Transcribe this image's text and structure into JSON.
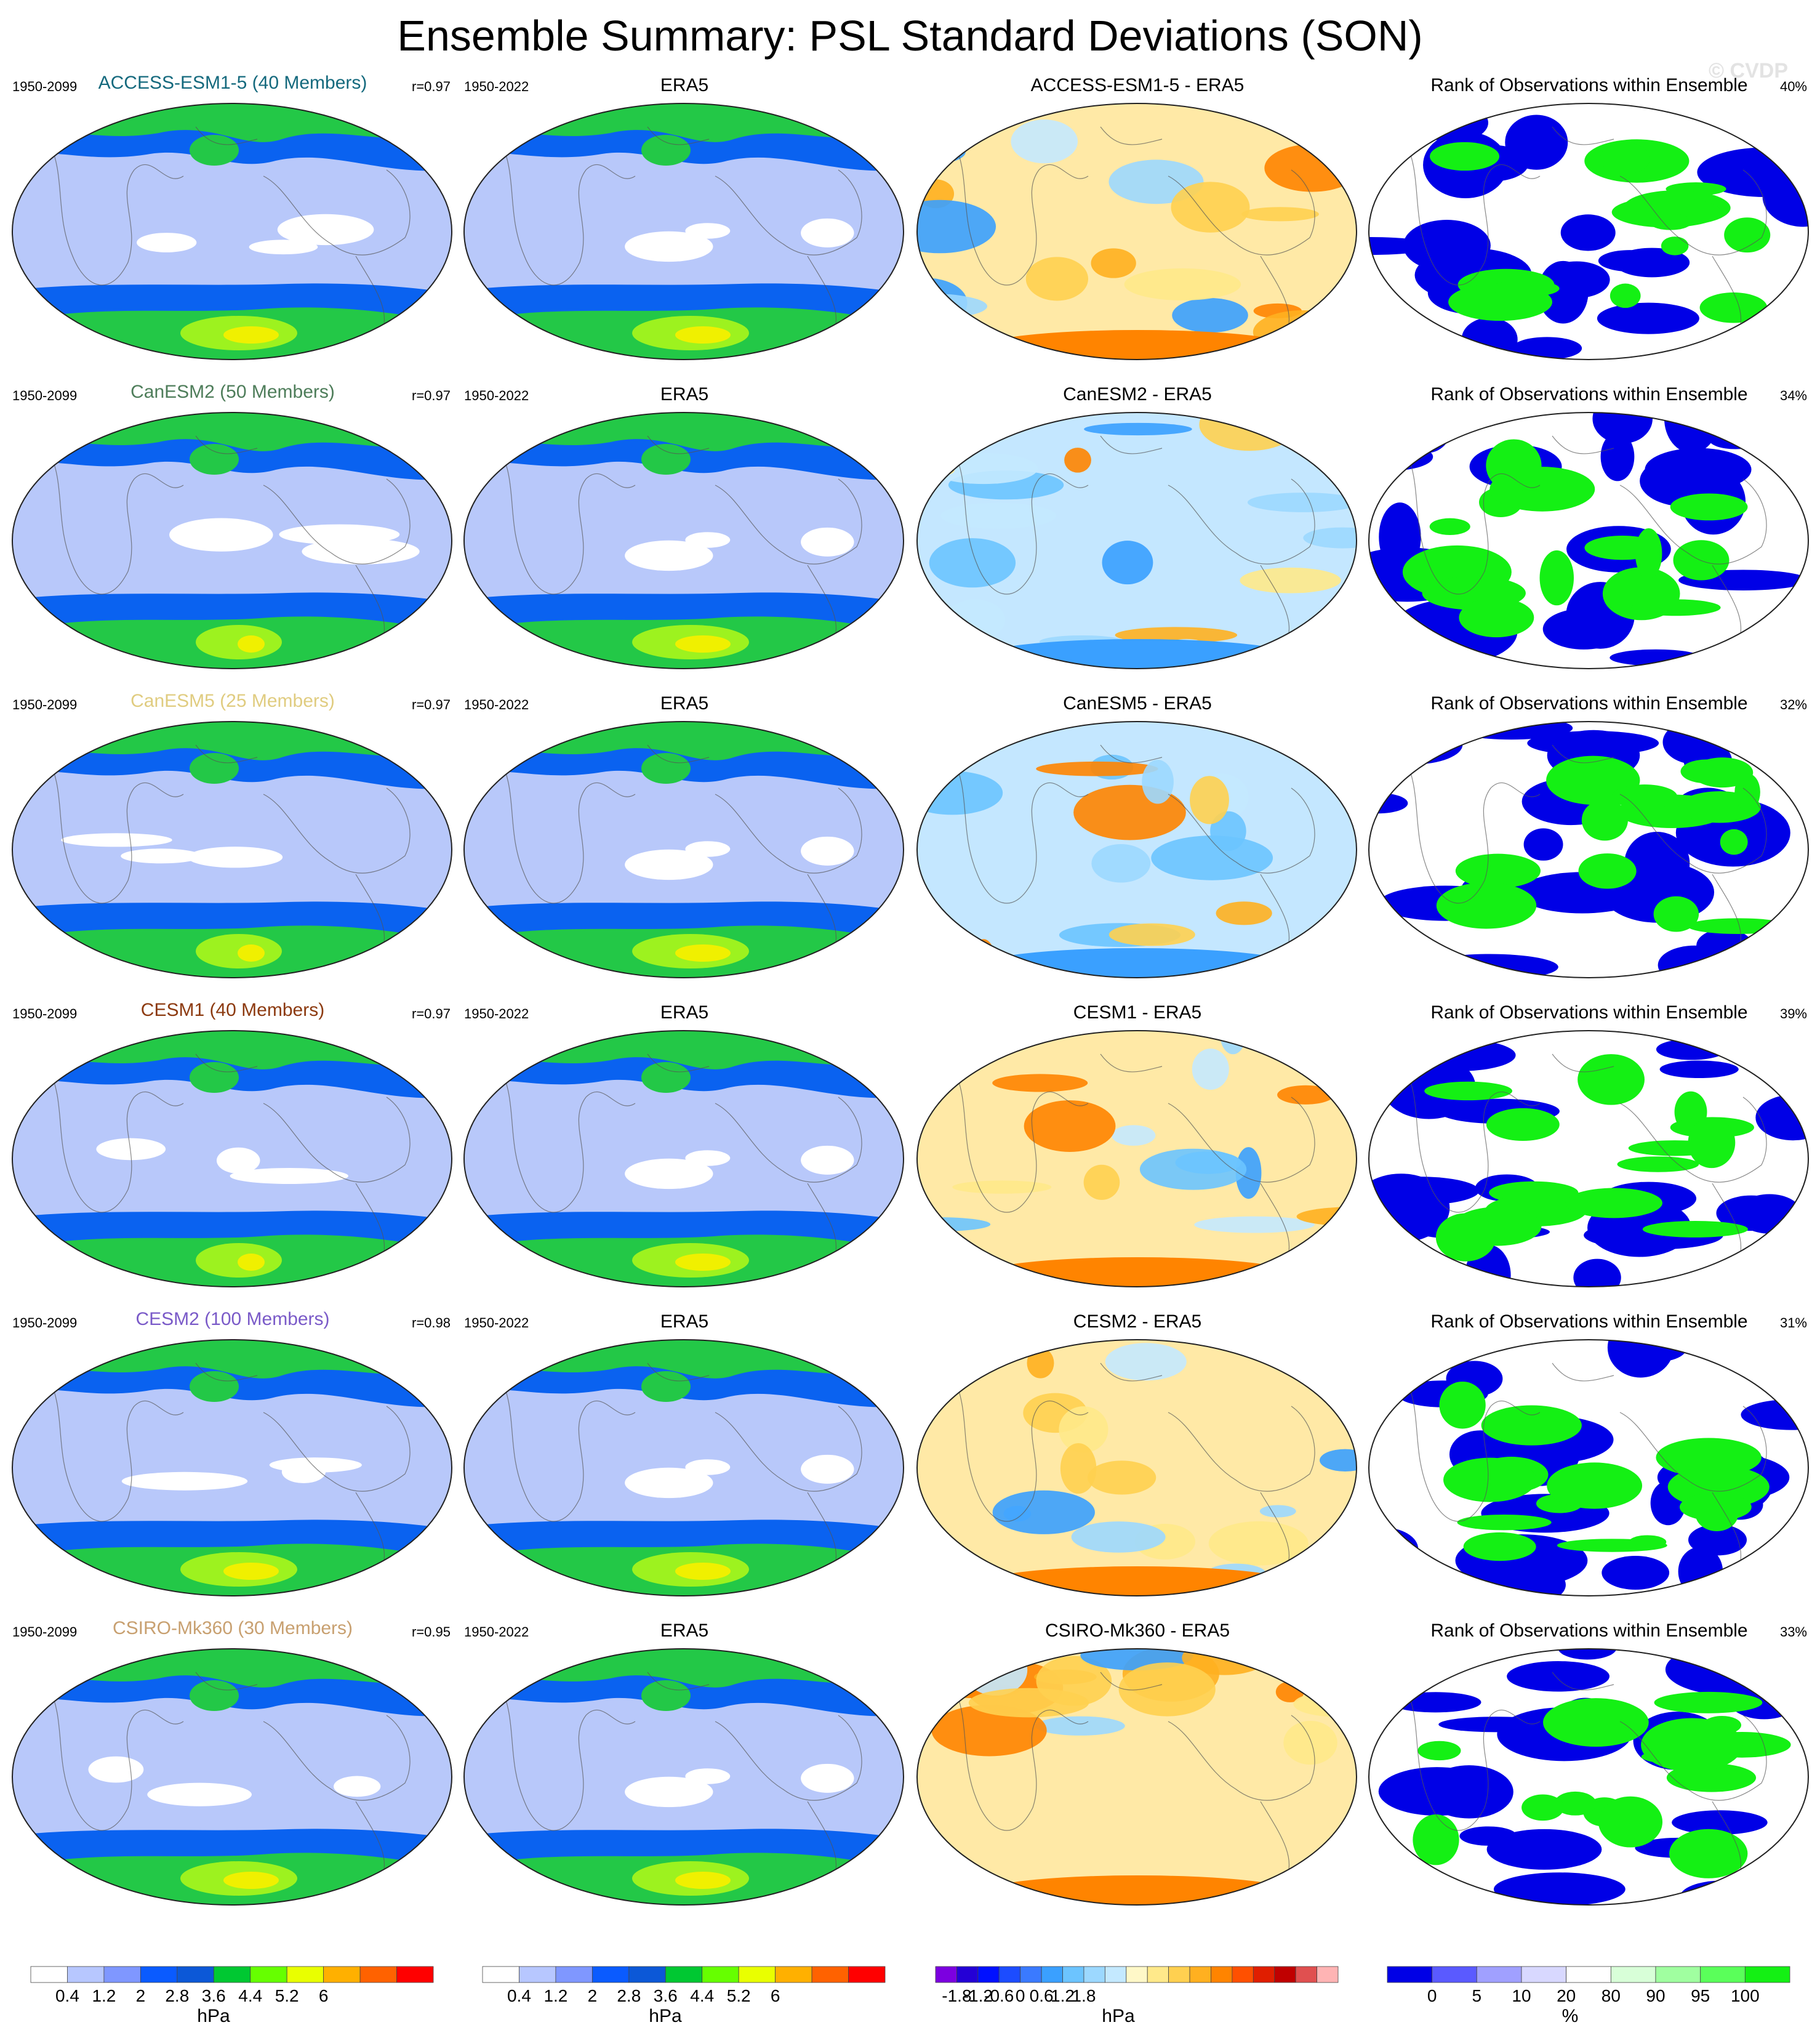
{
  "title": "Ensemble Summary: PSL Standard Deviations (SON)",
  "watermark": "© CVDP",
  "era5_title": "ERA5",
  "era5_years": "1950-2022",
  "rank_title": "Rank of Observations within Ensemble",
  "colors": {
    "sd_levels": [
      "#ffffff",
      "#b7c7ff",
      "#7f97ff",
      "#0a5bff",
      "#0c58d7",
      "#00c832",
      "#66ff00",
      "#e9ff00",
      "#ffb000",
      "#ff6200",
      "#ff0000"
    ],
    "sd_low": "#b8c8fa",
    "sd_band": "#0a62f0",
    "sd_green": "#23c847",
    "sd_lime": "#9df21f",
    "sd_yellow": "#f0f000",
    "sd_white": "#ffffff",
    "diff_warm": "#ffe9a6",
    "diff_cool": "#c4e7ff",
    "rank_blue": "#0000e6",
    "rank_green": "#14f014",
    "rank_white": "#ffffff"
  },
  "rows": [
    {
      "model": "ACCESS-ESM1-5 (40 Members)",
      "model_color": "#14697d",
      "years": "1950-2099",
      "r": "r=0.97",
      "diff_title": "ACCESS-ESM1-5 - ERA5",
      "rank_pct": "40%"
    },
    {
      "model": "CanESM2 (50 Members)",
      "model_color": "#4e7d5a",
      "years": "1950-2099",
      "r": "r=0.97",
      "diff_title": "CanESM2 - ERA5",
      "rank_pct": "34%"
    },
    {
      "model": "CanESM5 (25 Members)",
      "model_color": "#e0cc80",
      "years": "1950-2099",
      "r": "r=0.97",
      "diff_title": "CanESM5 - ERA5",
      "rank_pct": "32%"
    },
    {
      "model": "CESM1 (40 Members)",
      "model_color": "#8c3a10",
      "years": "1950-2099",
      "r": "r=0.97",
      "diff_title": "CESM1 - ERA5",
      "rank_pct": "39%"
    },
    {
      "model": "CESM2 (100 Members)",
      "model_color": "#7a5ac8",
      "years": "1950-2099",
      "r": "r=0.98",
      "diff_title": "CESM2 - ERA5",
      "rank_pct": "31%"
    },
    {
      "model": "CSIRO-Mk360 (30 Members)",
      "model_color": "#c8a070",
      "years": "1950-2099",
      "r": "r=0.95",
      "diff_title": "CSIRO-Mk360 - ERA5",
      "rank_pct": "33%"
    }
  ],
  "colorbars": [
    {
      "unit": "hPa",
      "labels": [
        "0.4",
        "1.2",
        "2",
        "2.8",
        "3.6",
        "4.4",
        "5.2",
        "6"
      ],
      "colors": [
        "#ffffff",
        "#b7c7ff",
        "#7f97ff",
        "#0a5bff",
        "#0c58d7",
        "#00c832",
        "#66ff00",
        "#e9ff00",
        "#ffb000",
        "#ff6200",
        "#ff0000"
      ]
    },
    {
      "unit": "hPa",
      "labels": [
        "0.4",
        "1.2",
        "2",
        "2.8",
        "3.6",
        "4.4",
        "5.2",
        "6"
      ],
      "colors": [
        "#ffffff",
        "#b7c7ff",
        "#7f97ff",
        "#0a5bff",
        "#0c58d7",
        "#00c832",
        "#66ff00",
        "#e9ff00",
        "#ffb000",
        "#ff6200",
        "#ff0000"
      ]
    },
    {
      "unit": "hPa",
      "labels": [
        "-1.8",
        "-1.2",
        "-0.6",
        "0",
        "0.6",
        "1.2",
        "1.8"
      ],
      "colors": [
        "#7c00e0",
        "#2400d6",
        "#0010ff",
        "#1c4cff",
        "#3a7aff",
        "#3aa0ff",
        "#6cc4ff",
        "#9cd8ff",
        "#c4e9ff",
        "#fff8c8",
        "#ffe98a",
        "#ffd050",
        "#ffb020",
        "#ff8400",
        "#ff5000",
        "#e01e00",
        "#c00000",
        "#e05050",
        "#ffb4b4"
      ]
    },
    {
      "unit": "%",
      "labels": [
        "0",
        "5",
        "10",
        "20",
        "80",
        "90",
        "95",
        "100"
      ],
      "colors": [
        "#0000e6",
        "#5a5aff",
        "#a0a0ff",
        "#d8d8ff",
        "#ffffff",
        "#d8ffd8",
        "#a0ffa0",
        "#5aff5a",
        "#14f014"
      ]
    }
  ],
  "chart_data": [
    {
      "type": "heatmap",
      "title": "ACCESS-ESM1-5 (40 Members)",
      "variable": "PSL standard deviation",
      "units": "hPa",
      "period": "1950-2099",
      "pattern_correlation": 0.97
    },
    {
      "type": "heatmap",
      "title": "ERA5",
      "variable": "PSL standard deviation",
      "units": "hPa",
      "period": "1950-2022"
    },
    {
      "type": "heatmap",
      "title": "ACCESS-ESM1-5 - ERA5",
      "units": "hPa"
    },
    {
      "type": "heatmap",
      "title": "Rank of Observations within Ensemble",
      "units": "%",
      "summary": "40%"
    },
    {
      "type": "heatmap",
      "title": "CanESM2 (50 Members)",
      "period": "1950-2099",
      "pattern_correlation": 0.97
    },
    {
      "type": "heatmap",
      "title": "CanESM2 - ERA5",
      "units": "hPa"
    },
    {
      "type": "heatmap",
      "title": "Rank of Observations within Ensemble",
      "summary": "34%"
    },
    {
      "type": "heatmap",
      "title": "CanESM5 (25 Members)",
      "period": "1950-2099",
      "pattern_correlation": 0.97
    },
    {
      "type": "heatmap",
      "title": "CanESM5 - ERA5",
      "units": "hPa"
    },
    {
      "type": "heatmap",
      "title": "Rank of Observations within Ensemble",
      "summary": "32%"
    },
    {
      "type": "heatmap",
      "title": "CESM1 (40 Members)",
      "period": "1950-2099",
      "pattern_correlation": 0.97
    },
    {
      "type": "heatmap",
      "title": "CESM1 - ERA5",
      "units": "hPa"
    },
    {
      "type": "heatmap",
      "title": "Rank of Observations within Ensemble",
      "summary": "39%"
    },
    {
      "type": "heatmap",
      "title": "CESM2 (100 Members)",
      "period": "1950-2099",
      "pattern_correlation": 0.98
    },
    {
      "type": "heatmap",
      "title": "CESM2 - ERA5",
      "units": "hPa"
    },
    {
      "type": "heatmap",
      "title": "Rank of Observations within Ensemble",
      "summary": "31%"
    },
    {
      "type": "heatmap",
      "title": "CSIRO-Mk360 (30 Members)",
      "period": "1950-2099",
      "pattern_correlation": 0.95
    },
    {
      "type": "heatmap",
      "title": "CSIRO-Mk360 - ERA5",
      "units": "hPa"
    },
    {
      "type": "heatmap",
      "title": "Rank of Observations within Ensemble",
      "summary": "33%"
    }
  ]
}
